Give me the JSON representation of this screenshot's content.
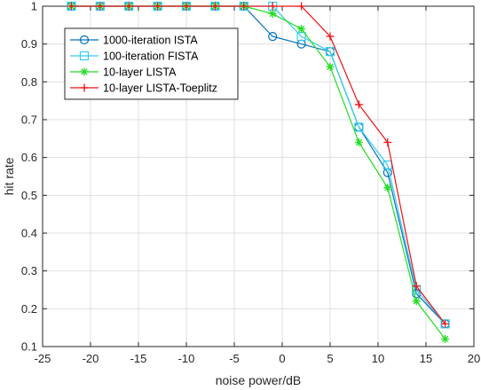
{
  "chart_data": {
    "type": "line",
    "title": "",
    "xlabel": "noise power/dB",
    "ylabel": "hit rate",
    "xlim": [
      -25,
      20
    ],
    "ylim": [
      0.1,
      1
    ],
    "xticks": [
      -25,
      -20,
      -15,
      -10,
      -5,
      0,
      5,
      10,
      15,
      20
    ],
    "yticks": [
      0.1,
      0.2,
      0.3,
      0.4,
      0.5,
      0.6,
      0.7,
      0.8,
      0.9,
      1
    ],
    "grid": true,
    "legend_position": "top-left",
    "x": [
      -22,
      -19,
      -16,
      -13,
      -10,
      -7,
      -4,
      -1,
      2,
      5,
      8,
      11,
      14,
      17
    ],
    "series": [
      {
        "name": "1000-iteration ISTA",
        "color": "#0072BD",
        "marker": "circle",
        "values": [
          1,
          1,
          1,
          1,
          1,
          1,
          1,
          0.92,
          0.9,
          0.88,
          0.68,
          0.56,
          0.24,
          0.16
        ]
      },
      {
        "name": "100-iteration FISTA",
        "color": "#33CCEE",
        "marker": "square",
        "values": [
          1,
          1,
          1,
          1,
          1,
          1,
          1,
          1,
          0.92,
          0.88,
          0.68,
          0.58,
          0.25,
          0.16
        ]
      },
      {
        "name": "10-layer LISTA",
        "color": "#22DD22",
        "marker": "asterisk",
        "values": [
          1,
          1,
          1,
          1,
          1,
          1,
          1,
          0.98,
          0.94,
          0.84,
          0.64,
          0.52,
          0.22,
          0.12
        ]
      },
      {
        "name": "10-layer LISTA-Toeplitz",
        "color": "#EE1111",
        "marker": "plus",
        "values": [
          1,
          1,
          1,
          1,
          1,
          1,
          1,
          1,
          1,
          0.92,
          0.74,
          0.64,
          0.26,
          0.16
        ]
      }
    ]
  }
}
